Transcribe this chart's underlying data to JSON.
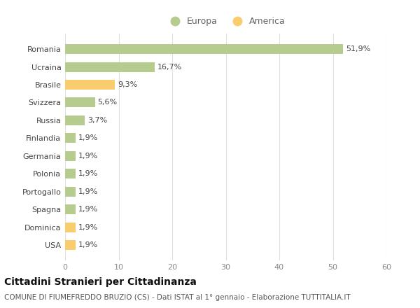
{
  "categories": [
    "Romania",
    "Ucraina",
    "Brasile",
    "Svizzera",
    "Russia",
    "Finlandia",
    "Germania",
    "Polonia",
    "Portogallo",
    "Spagna",
    "Dominica",
    "USA"
  ],
  "values": [
    51.9,
    16.7,
    9.3,
    5.6,
    3.7,
    1.9,
    1.9,
    1.9,
    1.9,
    1.9,
    1.9,
    1.9
  ],
  "labels": [
    "51,9%",
    "16,7%",
    "9,3%",
    "5,6%",
    "3,7%",
    "1,9%",
    "1,9%",
    "1,9%",
    "1,9%",
    "1,9%",
    "1,9%",
    "1,9%"
  ],
  "continents": [
    "Europa",
    "Europa",
    "America",
    "Europa",
    "Europa",
    "Europa",
    "Europa",
    "Europa",
    "Europa",
    "Europa",
    "America",
    "America"
  ],
  "color_europa": "#b5cc8e",
  "color_america": "#f9cc6e",
  "background_color": "#ffffff",
  "grid_color": "#e0e0e0",
  "xlim": [
    0,
    60
  ],
  "xticks": [
    0,
    10,
    20,
    30,
    40,
    50,
    60
  ],
  "title": "Cittadini Stranieri per Cittadinanza",
  "subtitle": "COMUNE DI FIUMEFREDDO BRUZIO (CS) - Dati ISTAT al 1° gennaio - Elaborazione TUTTITALIA.IT",
  "legend_europa": "Europa",
  "legend_america": "America",
  "title_fontsize": 10,
  "subtitle_fontsize": 7.5,
  "label_fontsize": 8,
  "tick_fontsize": 8,
  "legend_fontsize": 9,
  "bar_height": 0.55
}
